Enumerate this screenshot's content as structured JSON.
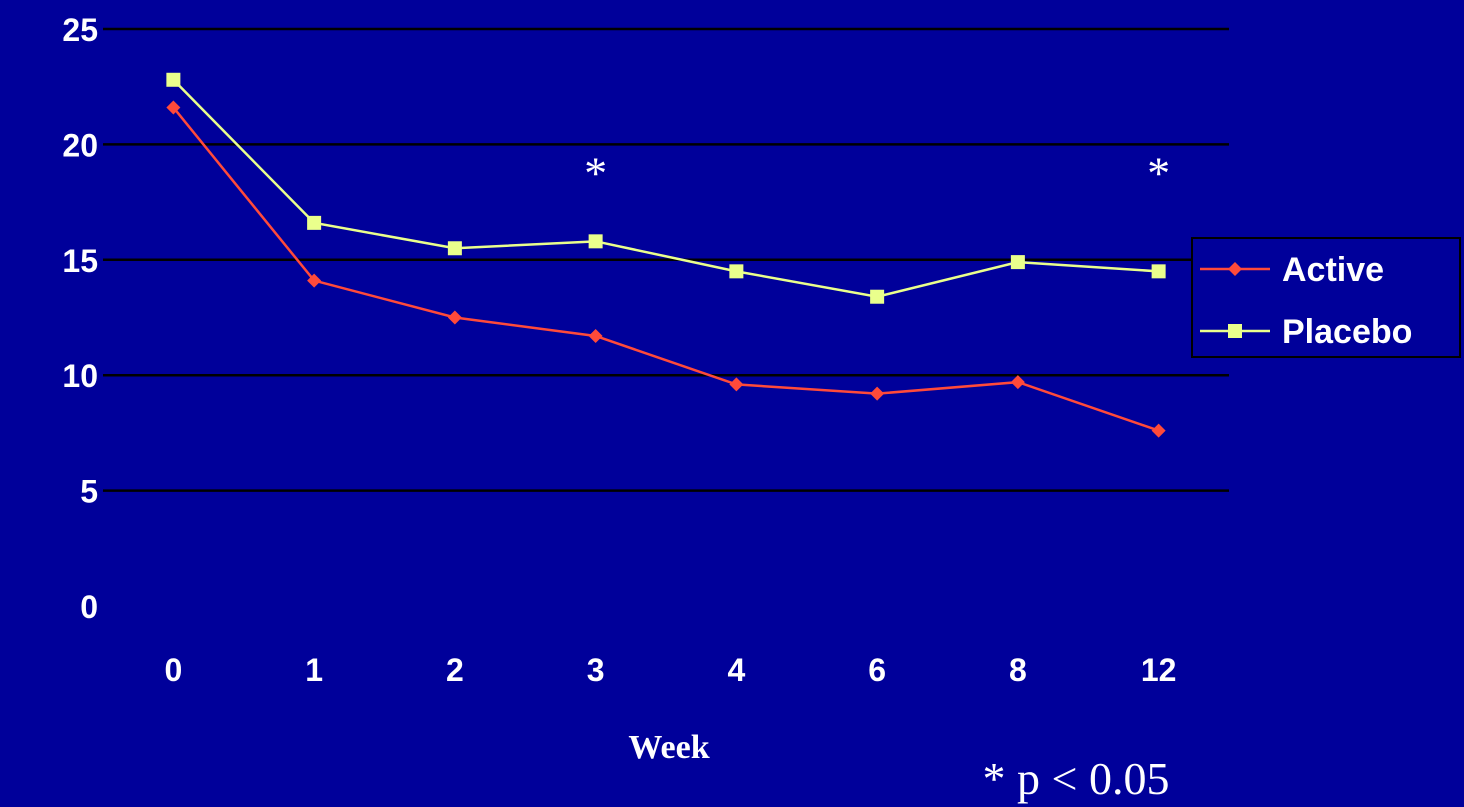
{
  "chart_data": {
    "type": "line",
    "categories": [
      "0",
      "1",
      "2",
      "3",
      "4",
      "6",
      "8",
      "12"
    ],
    "xlabel": "Week",
    "ylabel": "",
    "title": "",
    "ylim": [
      0,
      25
    ],
    "yticks": [
      0,
      5,
      10,
      15,
      20,
      25
    ],
    "grid": true,
    "legend_position": "right",
    "series": [
      {
        "name": "Active",
        "color": "#ff4a3a",
        "marker": "diamond",
        "values": [
          21.6,
          14.1,
          12.5,
          11.7,
          9.6,
          9.2,
          9.7,
          7.6
        ]
      },
      {
        "name": "Placebo",
        "color": "#eaff8c",
        "marker": "square",
        "values": [
          22.8,
          16.6,
          15.5,
          15.8,
          14.5,
          13.4,
          14.9,
          14.5
        ]
      }
    ],
    "annotations": [
      {
        "text": "*",
        "category": "3",
        "y": 20.0
      },
      {
        "text": "*",
        "category": "12",
        "y": 20.0
      }
    ],
    "footnote": "* p < 0.05"
  }
}
